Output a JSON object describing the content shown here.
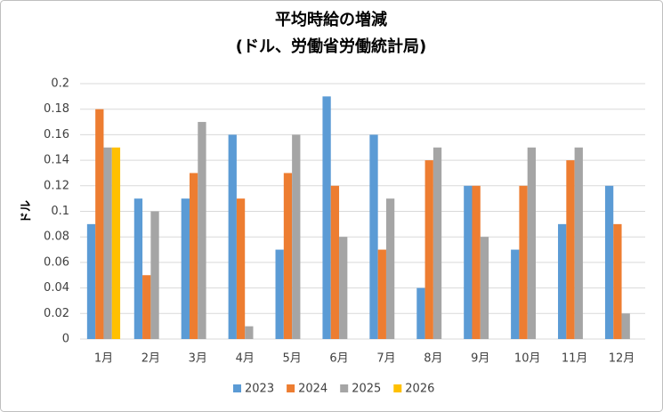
{
  "chart_data": {
    "type": "bar",
    "title": "平均時給の増減",
    "subtitle": "(ドル、労働省労働統計局)",
    "y_label": "ドル",
    "categories": [
      "1月",
      "2月",
      "3月",
      "4月",
      "5月",
      "6月",
      "7月",
      "8月",
      "9月",
      "10月",
      "11月",
      "12月"
    ],
    "series": [
      {
        "name": "2023",
        "color": "#5b9bd5",
        "values": [
          0.09,
          0.11,
          0.11,
          0.16,
          0.07,
          0.19,
          0.16,
          0.04,
          0.12,
          0.07,
          0.09,
          0.12
        ]
      },
      {
        "name": "2024",
        "color": "#ed7d31",
        "values": [
          0.18,
          0.05,
          0.13,
          0.11,
          0.13,
          0.12,
          0.07,
          0.14,
          0.12,
          0.12,
          0.14,
          0.09
        ]
      },
      {
        "name": "2025",
        "color": "#a5a5a5",
        "values": [
          0.15,
          0.1,
          0.17,
          0.01,
          0.16,
          0.08,
          0.11,
          0.15,
          0.08,
          0.15,
          0.15,
          0.02
        ]
      },
      {
        "name": "2026",
        "color": "#ffc000",
        "values": [
          0.15,
          null,
          null,
          null,
          null,
          null,
          null,
          null,
          null,
          null,
          null,
          null
        ]
      }
    ],
    "ylim": [
      0,
      0.2
    ],
    "yticks": [
      0,
      0.02,
      0.04,
      0.06,
      0.08,
      0.1,
      0.12,
      0.14,
      0.16,
      0.18,
      0.2
    ],
    "grid": true,
    "legend": "bottom"
  }
}
